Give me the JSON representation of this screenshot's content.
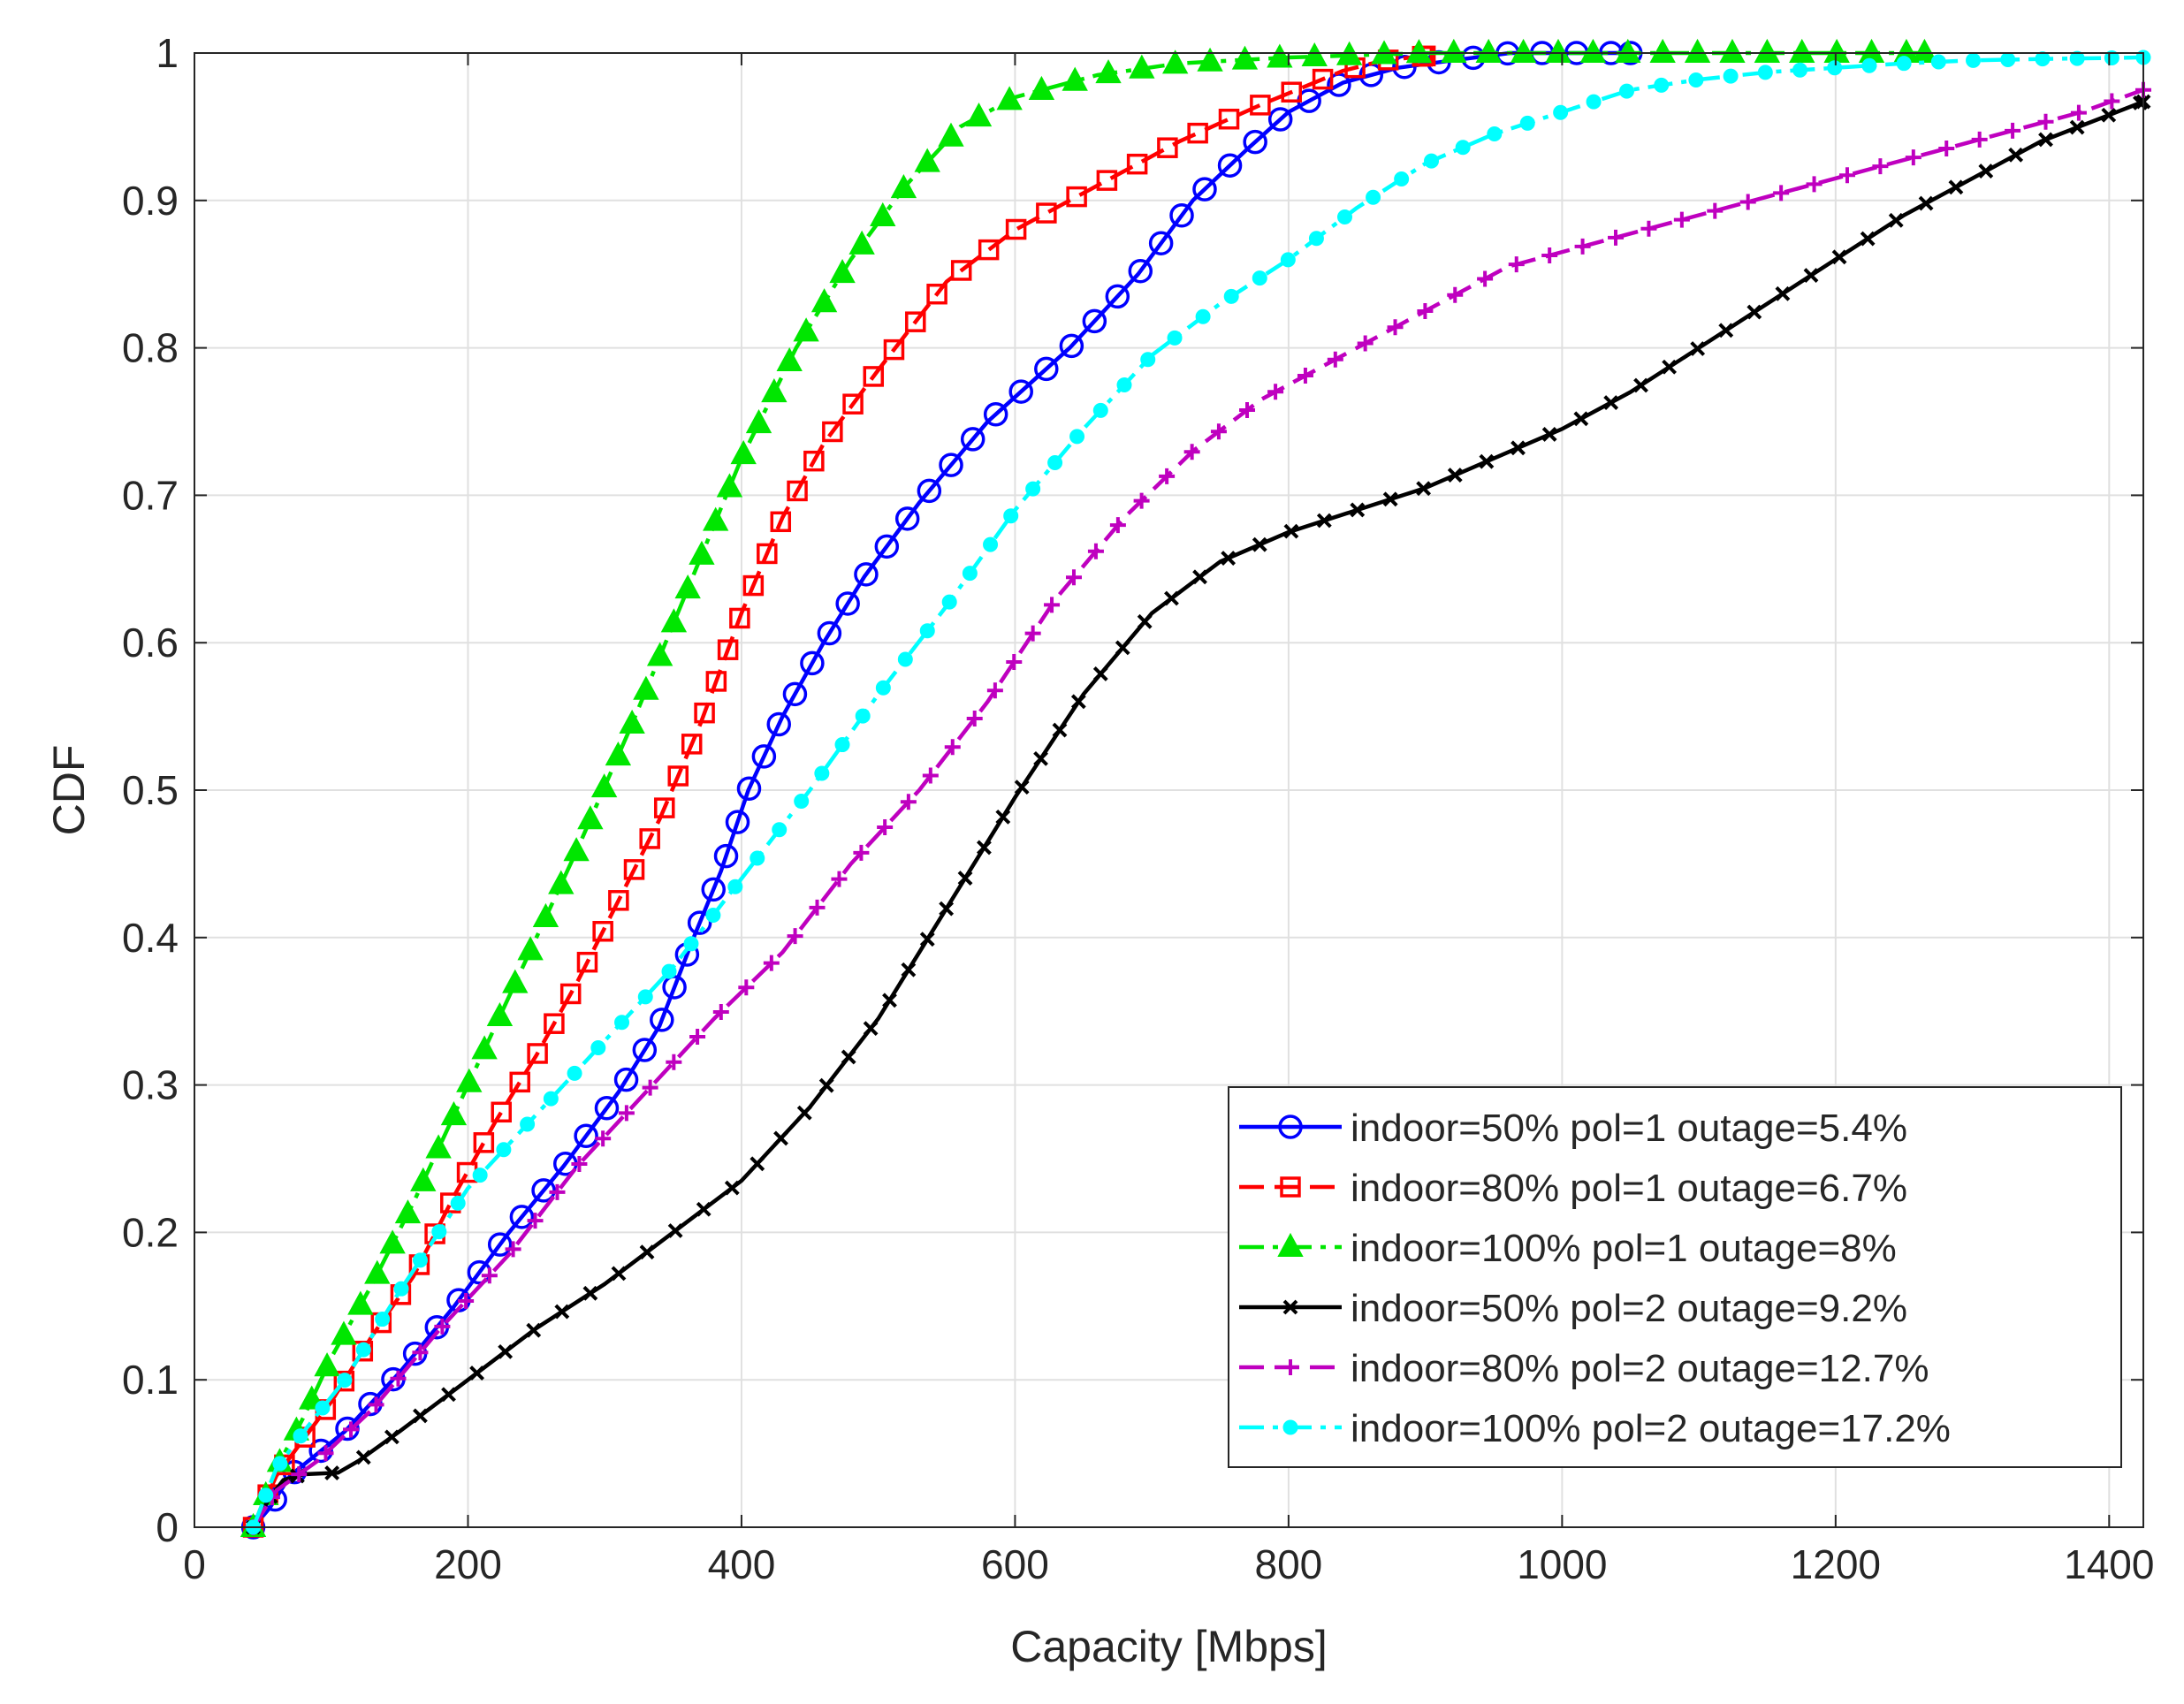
{
  "chart_data": {
    "type": "line",
    "title": "",
    "xlabel": "Capacity [Mbps]",
    "ylabel": "CDF",
    "xlim": [
      0,
      1425
    ],
    "ylim": [
      0,
      1
    ],
    "grid": true,
    "legend_position": "bottom-right",
    "xticks": [
      0,
      200,
      400,
      600,
      800,
      1000,
      1200,
      1400
    ],
    "yticks": [
      0,
      0.1,
      0.2,
      0.3,
      0.4,
      0.5,
      0.6,
      0.7,
      0.8,
      0.9,
      1
    ],
    "series": [
      {
        "name": "indoor=50% pol=1 outage=5.4%",
        "color": "#0000ff",
        "line_style": "solid",
        "marker": "circle",
        "points": [
          [
            43,
            0
          ],
          [
            55,
            0.013
          ],
          [
            70,
            0.035
          ],
          [
            90,
            0.05
          ],
          [
            110,
            0.065
          ],
          [
            150,
            0.105
          ],
          [
            190,
            0.15
          ],
          [
            230,
            0.2
          ],
          [
            270,
            0.245
          ],
          [
            310,
            0.295
          ],
          [
            340,
            0.34
          ],
          [
            365,
            0.4
          ],
          [
            385,
            0.445
          ],
          [
            405,
            0.5
          ],
          [
            430,
            0.55
          ],
          [
            460,
            0.6
          ],
          [
            490,
            0.645
          ],
          [
            530,
            0.695
          ],
          [
            580,
            0.75
          ],
          [
            640,
            0.8
          ],
          [
            690,
            0.85
          ],
          [
            730,
            0.9
          ],
          [
            770,
            0.935
          ],
          [
            800,
            0.96
          ],
          [
            840,
            0.98
          ],
          [
            880,
            0.99
          ],
          [
            920,
            0.995
          ],
          [
            962,
            1.0
          ],
          [
            1000,
            1.0
          ],
          [
            1050,
            1.0
          ]
        ]
      },
      {
        "name": "indoor=80% pol=1 outage=6.7%",
        "color": "#ff0000",
        "line_style": "dashed",
        "marker": "square",
        "points": [
          [
            43,
            0
          ],
          [
            60,
            0.035
          ],
          [
            80,
            0.06
          ],
          [
            100,
            0.085
          ],
          [
            130,
            0.13
          ],
          [
            160,
            0.17
          ],
          [
            190,
            0.225
          ],
          [
            220,
            0.275
          ],
          [
            250,
            0.32
          ],
          [
            280,
            0.37
          ],
          [
            310,
            0.425
          ],
          [
            340,
            0.48
          ],
          [
            370,
            0.545
          ],
          [
            400,
            0.62
          ],
          [
            430,
            0.685
          ],
          [
            460,
            0.735
          ],
          [
            500,
            0.785
          ],
          [
            550,
            0.845
          ],
          [
            600,
            0.88
          ],
          [
            660,
            0.91
          ],
          [
            720,
            0.94
          ],
          [
            780,
            0.965
          ],
          [
            840,
            0.988
          ],
          [
            870,
            0.995
          ],
          [
            900,
            0.998
          ]
        ]
      },
      {
        "name": "indoor=100% pol=1 outage=8%",
        "color": "#00e600",
        "line_style": "dash-dot",
        "marker": "triangle",
        "points": [
          [
            43,
            0
          ],
          [
            60,
            0.04
          ],
          [
            80,
            0.075
          ],
          [
            100,
            0.115
          ],
          [
            130,
            0.165
          ],
          [
            160,
            0.22
          ],
          [
            200,
            0.3
          ],
          [
            240,
            0.38
          ],
          [
            280,
            0.46
          ],
          [
            320,
            0.545
          ],
          [
            360,
            0.635
          ],
          [
            400,
            0.725
          ],
          [
            440,
            0.8
          ],
          [
            480,
            0.86
          ],
          [
            520,
            0.91
          ],
          [
            560,
            0.95
          ],
          [
            600,
            0.97
          ],
          [
            660,
            0.985
          ],
          [
            720,
            0.993
          ],
          [
            800,
            0.997
          ],
          [
            900,
            1.0
          ],
          [
            1000,
            1.0
          ],
          [
            1100,
            1.0
          ],
          [
            1265,
            1.0
          ]
        ]
      },
      {
        "name": "indoor=50% pol=2 outage=9.2%",
        "color": "#000000",
        "line_style": "solid",
        "marker": "x",
        "points": [
          [
            43,
            0
          ],
          [
            55,
            0.02
          ],
          [
            65,
            0.032
          ],
          [
            80,
            0.036
          ],
          [
            105,
            0.037
          ],
          [
            120,
            0.045
          ],
          [
            150,
            0.065
          ],
          [
            200,
            0.1
          ],
          [
            250,
            0.135
          ],
          [
            300,
            0.165
          ],
          [
            350,
            0.2
          ],
          [
            400,
            0.235
          ],
          [
            450,
            0.285
          ],
          [
            500,
            0.345
          ],
          [
            550,
            0.42
          ],
          [
            600,
            0.495
          ],
          [
            650,
            0.565
          ],
          [
            700,
            0.62
          ],
          [
            750,
            0.655
          ],
          [
            800,
            0.675
          ],
          [
            850,
            0.69
          ],
          [
            900,
            0.705
          ],
          [
            950,
            0.725
          ],
          [
            1000,
            0.745
          ],
          [
            1050,
            0.77
          ],
          [
            1100,
            0.8
          ],
          [
            1150,
            0.83
          ],
          [
            1200,
            0.86
          ],
          [
            1250,
            0.89
          ],
          [
            1300,
            0.915
          ],
          [
            1350,
            0.94
          ],
          [
            1400,
            0.958
          ],
          [
            1425,
            0.967
          ]
        ]
      },
      {
        "name": "indoor=80% pol=2 outage=12.7%",
        "color": "#bf00bf",
        "line_style": "dashed",
        "marker": "plus",
        "points": [
          [
            43,
            0
          ],
          [
            60,
            0.025
          ],
          [
            90,
            0.045
          ],
          [
            130,
            0.08
          ],
          [
            180,
            0.135
          ],
          [
            230,
            0.185
          ],
          [
            280,
            0.245
          ],
          [
            330,
            0.295
          ],
          [
            380,
            0.345
          ],
          [
            430,
            0.39
          ],
          [
            480,
            0.45
          ],
          [
            530,
            0.5
          ],
          [
            580,
            0.56
          ],
          [
            630,
            0.63
          ],
          [
            680,
            0.685
          ],
          [
            730,
            0.73
          ],
          [
            780,
            0.765
          ],
          [
            840,
            0.795
          ],
          [
            900,
            0.825
          ],
          [
            960,
            0.855
          ],
          [
            1020,
            0.87
          ],
          [
            1080,
            0.885
          ],
          [
            1140,
            0.9
          ],
          [
            1200,
            0.915
          ],
          [
            1260,
            0.93
          ],
          [
            1320,
            0.945
          ],
          [
            1380,
            0.96
          ],
          [
            1425,
            0.975
          ]
        ]
      },
      {
        "name": "indoor=100% pol=2 outage=17.2%",
        "color": "#00ffff",
        "line_style": "dash-dot",
        "marker": "dot",
        "points": [
          [
            43,
            0
          ],
          [
            60,
            0.04
          ],
          [
            80,
            0.065
          ],
          [
            110,
            0.1
          ],
          [
            150,
            0.16
          ],
          [
            200,
            0.23
          ],
          [
            250,
            0.28
          ],
          [
            300,
            0.33
          ],
          [
            350,
            0.38
          ],
          [
            400,
            0.44
          ],
          [
            450,
            0.5
          ],
          [
            500,
            0.565
          ],
          [
            550,
            0.625
          ],
          [
            600,
            0.69
          ],
          [
            650,
            0.745
          ],
          [
            700,
            0.795
          ],
          [
            750,
            0.83
          ],
          [
            800,
            0.86
          ],
          [
            850,
            0.895
          ],
          [
            900,
            0.925
          ],
          [
            950,
            0.945
          ],
          [
            1000,
            0.96
          ],
          [
            1050,
            0.975
          ],
          [
            1100,
            0.982
          ],
          [
            1150,
            0.987
          ],
          [
            1200,
            0.99
          ],
          [
            1250,
            0.993
          ],
          [
            1300,
            0.995
          ],
          [
            1350,
            0.996
          ],
          [
            1425,
            0.997
          ]
        ]
      }
    ]
  }
}
